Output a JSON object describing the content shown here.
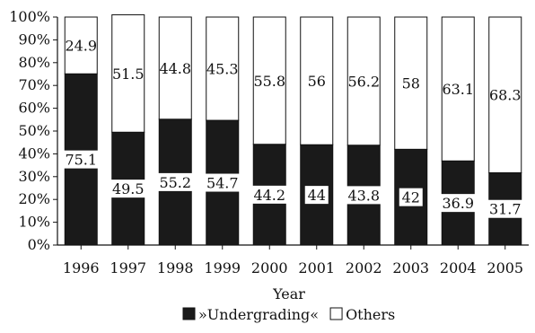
{
  "chart_data": {
    "type": "bar",
    "stacked": true,
    "percent_stacked": true,
    "title": "",
    "xlabel": "Year",
    "ylabel": "",
    "ylim": [
      0,
      100
    ],
    "y_tick_step": 10,
    "y_tick_suffix": "%",
    "grid": false,
    "legend_position": "bottom",
    "categories": [
      "1996",
      "1997",
      "1998",
      "1999",
      "2000",
      "2001",
      "2002",
      "2003",
      "2004",
      "2005"
    ],
    "series": [
      {
        "name": "»Undergrading«",
        "color": "#1a1a1a",
        "values": [
          75.1,
          49.5,
          55.2,
          54.7,
          44.2,
          44,
          43.8,
          42,
          36.9,
          31.7
        ]
      },
      {
        "name": "Others",
        "color": "#ffffff",
        "values": [
          24.9,
          51.5,
          44.8,
          45.3,
          55.8,
          56,
          56.2,
          58,
          63.1,
          68.3
        ]
      }
    ]
  }
}
